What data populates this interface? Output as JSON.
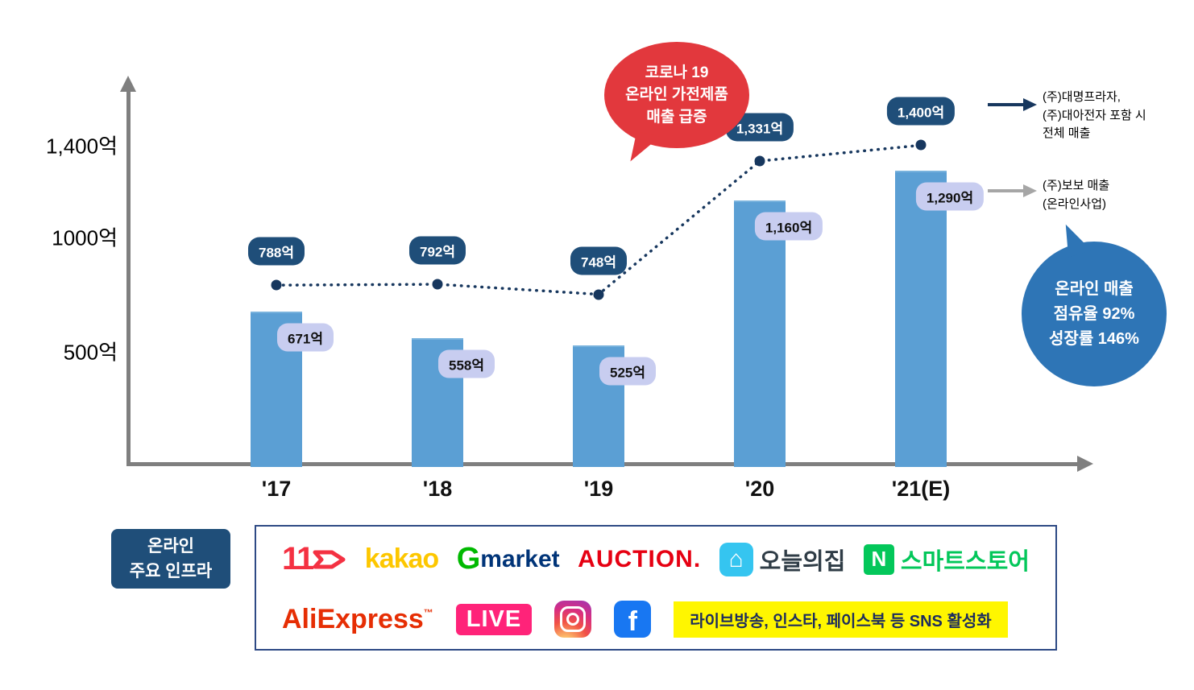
{
  "chart_data": {
    "type": "bar+line",
    "unit": "억",
    "categories": [
      "'17",
      "'18",
      "'19",
      "'20",
      "'21(E)"
    ],
    "series": [
      {
        "name": "전체 매출((주)대명프라자, (주)대아전자 포함 시)",
        "type": "line",
        "values": [
          788,
          792,
          748,
          1331,
          1400
        ],
        "labels": [
          "788억",
          "792억",
          "748억",
          "1,331억",
          "1,400억"
        ]
      },
      {
        "name": "(주)보보 매출(온라인사업)",
        "type": "bar",
        "values": [
          671,
          558,
          525,
          1160,
          1290
        ],
        "labels": [
          "671억",
          "558억",
          "525억",
          "1,160억",
          "1,290억"
        ]
      }
    ],
    "yticks": [
      {
        "label": "1,400억",
        "value": 1400
      },
      {
        "label": "1000억",
        "value": 1000
      },
      {
        "label": "500억",
        "value": 500
      }
    ],
    "ylim": [
      0,
      1500
    ],
    "grid": false,
    "legend_position": "right"
  },
  "annotations": {
    "covid_bubble": {
      "line1": "코로나 19",
      "line2": "온라인 가전제품",
      "line3": "매출 급증"
    },
    "legend_total": {
      "line1": "(주)대명프라자,",
      "line2": "(주)대아전자 포함 시",
      "line3": "전체 매출"
    },
    "legend_bobo": {
      "line1": "(주)보보 매출",
      "line2": "(온라인사업)"
    },
    "share_bubble": {
      "line1": "온라인 매출",
      "line2": "점유율 92%",
      "line3": "성장률 146%"
    }
  },
  "infra": {
    "title_line1": "온라인",
    "title_line2": "주요 인프라",
    "logos": {
      "st11": "11",
      "kakao": "kakao",
      "gmarket_g": "G",
      "gmarket_rest": "market",
      "auction": "AUCTION.",
      "ohou": "오늘의집",
      "naver_n": "N",
      "smartstore": "스마트스토어",
      "aliexpress": "AliExpress",
      "aliexpress_tm": "™",
      "live": "LIVE",
      "facebook_f": "f",
      "sns_banner": "라이브방송, 인스타, 페이스북 등 SNS 활성화"
    }
  },
  "colors": {
    "bar": "#5b9fd4",
    "line": "#17375e",
    "line_badge_bg": "#1f4e79",
    "bar_badge_bg": "#c8cdf0",
    "covid_bubble_bg": "#e2383d",
    "share_bubble_bg": "#2e75b6",
    "infra_title_bg": "#1f4e79",
    "sns_banner_bg": "#fff600",
    "axis": "#7f7f7f"
  }
}
